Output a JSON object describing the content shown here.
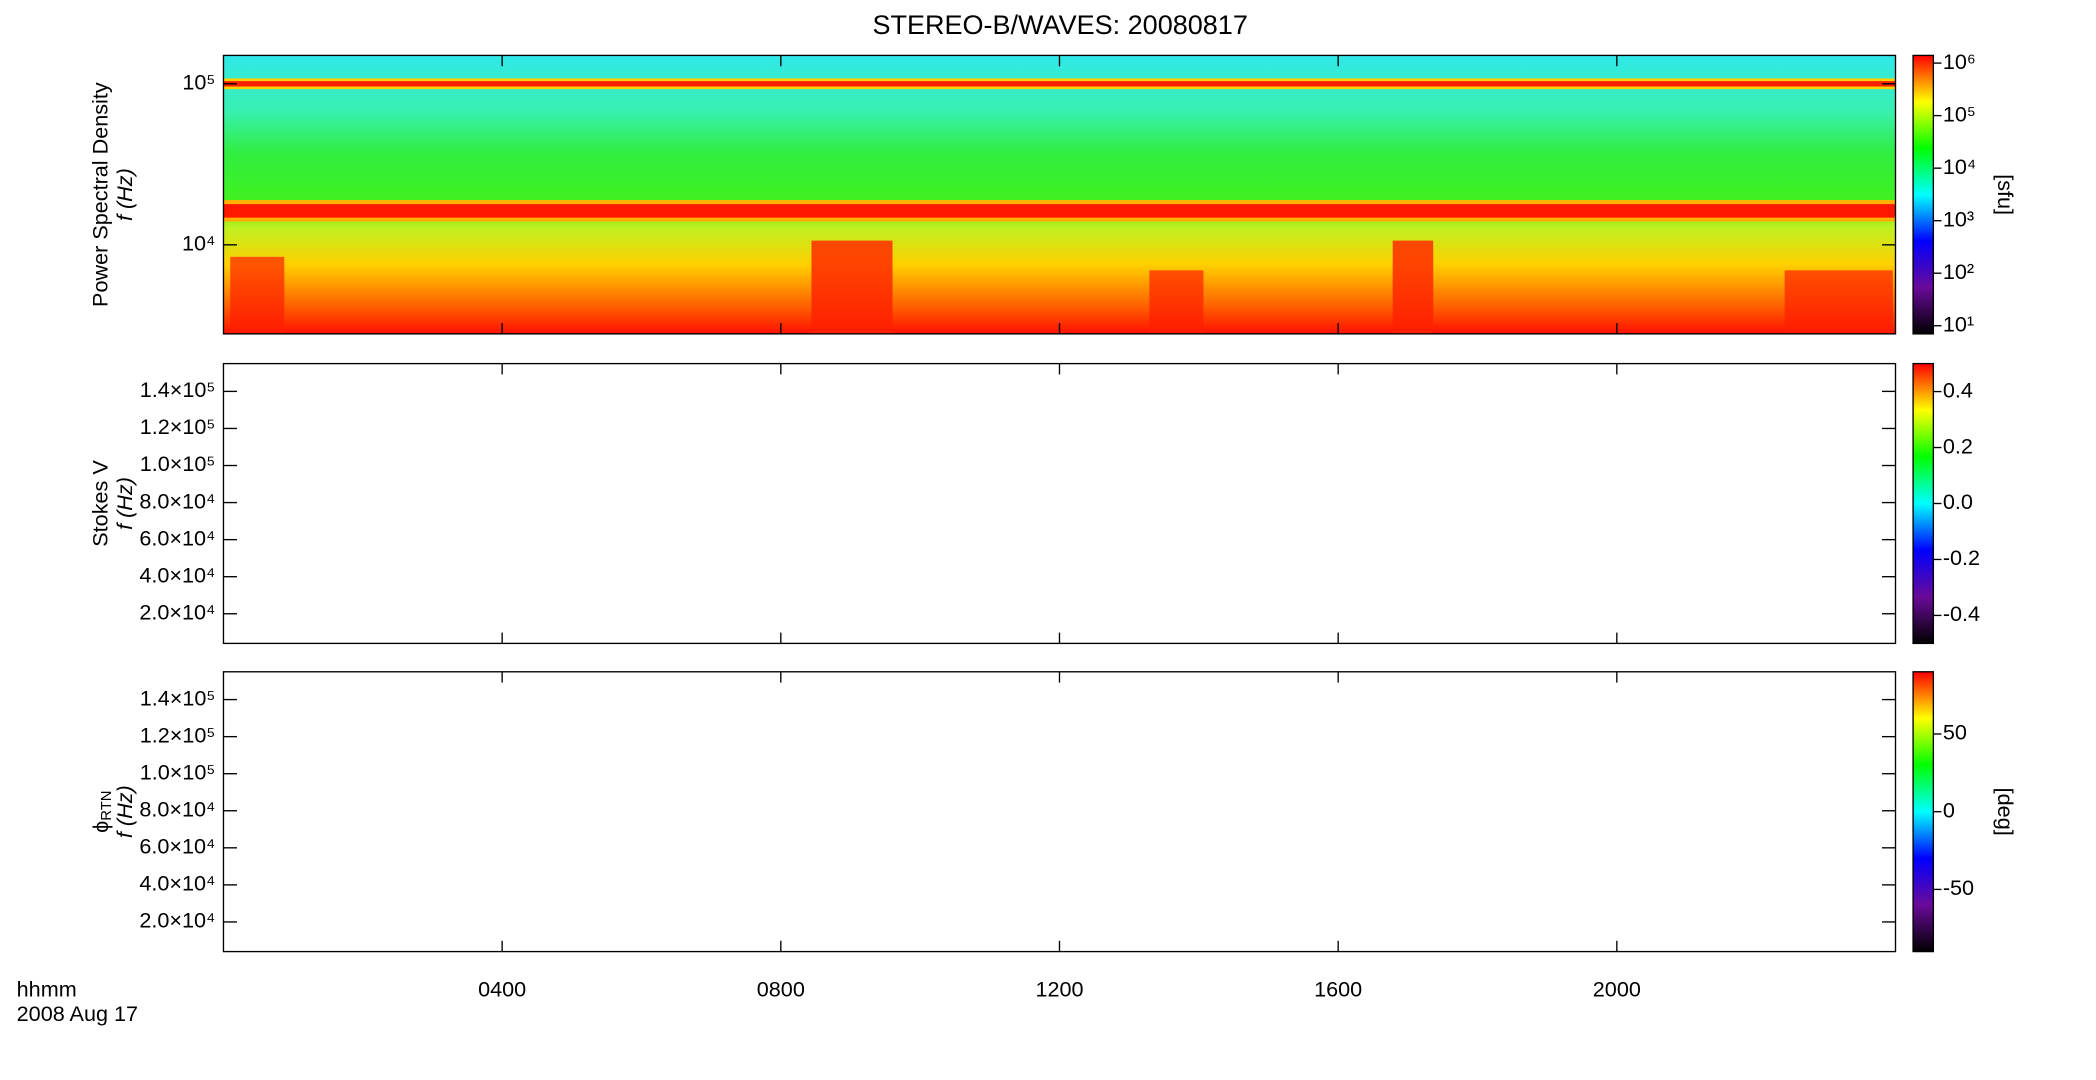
{
  "title": "STEREO-B/WAVES: 20080817",
  "x_axis": {
    "label": "hhmm",
    "date": "2008 Aug 17",
    "xlim": [
      0,
      24
    ],
    "xticks": [
      {
        "value": 4,
        "label": "0400"
      },
      {
        "value": 8,
        "label": "0800"
      },
      {
        "value": 12,
        "label": "1200"
      },
      {
        "value": 16,
        "label": "1600"
      },
      {
        "value": 20,
        "label": "2000"
      }
    ]
  },
  "chart_data": [
    {
      "type": "spectrogram",
      "ylabel": [
        "Power Spectral Density",
        "f (Hz)"
      ],
      "log": true,
      "ylim": [
        2800,
        150000
      ],
      "yticks": [
        {
          "value": 10000,
          "label": "10⁴"
        },
        {
          "value": 100000,
          "label": "10⁵"
        }
      ],
      "colorbar": {
        "label": "[sfu]",
        "log": true,
        "clim": [
          7,
          1400000
        ],
        "ticks": [
          {
            "value": 10,
            "label": "10¹"
          },
          {
            "value": 100,
            "label": "10²"
          },
          {
            "value": 1000,
            "label": "10³"
          },
          {
            "value": 10000,
            "label": "10⁴"
          },
          {
            "value": 100000,
            "label": "10⁵"
          },
          {
            "value": 1000000,
            "label": "10⁶"
          }
        ],
        "colormap": [
          "#000000",
          "#6a0a9a",
          "#0000ff",
          "#00ffff",
          "#00ff00",
          "#ffff00",
          "#ff0000"
        ]
      }
    },
    {
      "type": "spectrogram",
      "ylabel": [
        "Stokes V",
        "f (Hz)"
      ],
      "log": false,
      "ylim": [
        4000,
        155000
      ],
      "yticks": [
        {
          "value": 20000,
          "label": "2.0×10⁴"
        },
        {
          "value": 40000,
          "label": "4.0×10⁴"
        },
        {
          "value": 60000,
          "label": "6.0×10⁴"
        },
        {
          "value": 80000,
          "label": "8.0×10⁴"
        },
        {
          "value": 100000,
          "label": "1.0×10⁵"
        },
        {
          "value": 120000,
          "label": "1.2×10⁵"
        },
        {
          "value": 140000,
          "label": "1.4×10⁵"
        }
      ],
      "colorbar": {
        "log": false,
        "clim": [
          -0.5,
          0.5
        ],
        "ticks": [
          -0.4,
          -0.2,
          {
            "value": 0,
            "label": "0.0"
          },
          0.2,
          0.4
        ],
        "colormap": [
          "#000000",
          "#6a0a9a",
          "#0000ff",
          "#00ffff",
          "#00ff00",
          "#ffff00",
          "#ff0000"
        ]
      }
    },
    {
      "type": "spectrogram",
      "ylabel": [
        {
          "symbol": "ϕ",
          "subscript": "RTN"
        },
        "f (Hz)"
      ],
      "log": false,
      "ylim": [
        4000,
        155000
      ],
      "yticks": [
        {
          "value": 20000,
          "label": "2.0×10⁴"
        },
        {
          "value": 40000,
          "label": "4.0×10⁴"
        },
        {
          "value": 60000,
          "label": "6.0×10⁴"
        },
        {
          "value": 80000,
          "label": "8.0×10⁴"
        },
        {
          "value": 100000,
          "label": "1.0×10⁵"
        },
        {
          "value": 120000,
          "label": "1.2×10⁵"
        },
        {
          "value": 140000,
          "label": "1.4×10⁵"
        }
      ],
      "colorbar": {
        "label": "[deg]",
        "log": false,
        "clim": [
          -90,
          90
        ],
        "ticks": [
          -50,
          0,
          50
        ],
        "colormap": [
          "#000000",
          "#6a0a9a",
          "#0000ff",
          "#00ffff",
          "#00ff00",
          "#ffff00",
          "#ff0000"
        ]
      }
    }
  ]
}
